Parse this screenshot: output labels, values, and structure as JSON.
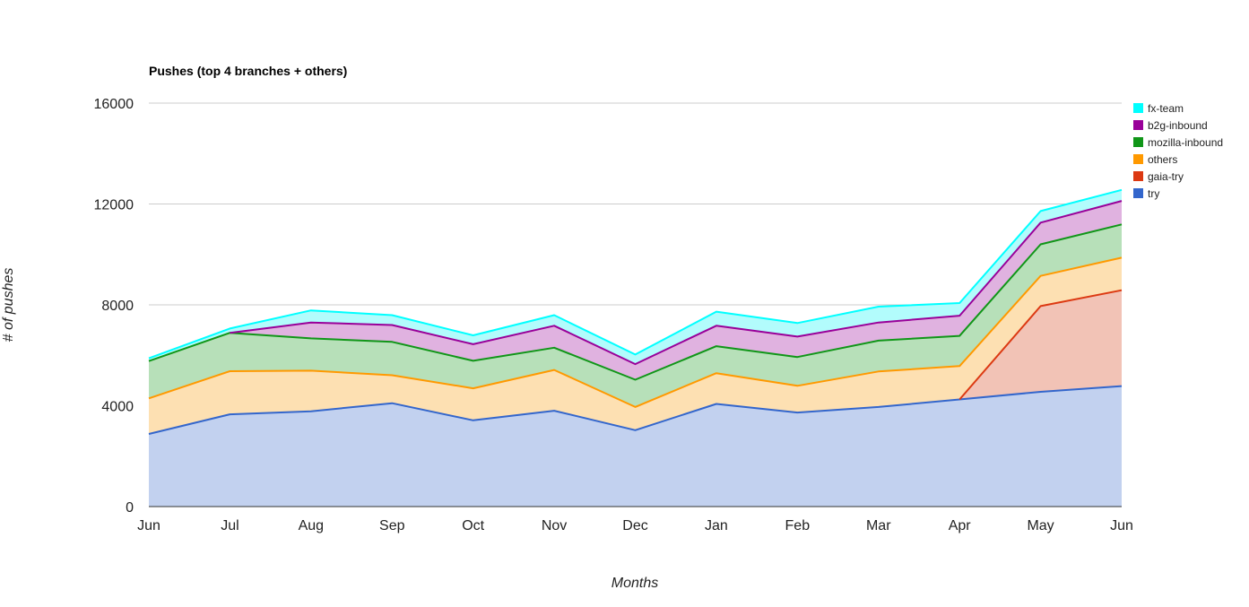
{
  "chart_data": {
    "type": "area",
    "stacked": true,
    "title": "Pushes (top 4 branches + others)",
    "xlabel": "Months",
    "ylabel": "# of pushes",
    "ylim": [
      0,
      16000
    ],
    "yticks": [
      "0",
      "4000",
      "8000",
      "12000",
      "16000"
    ],
    "y_tick_values": [
      0,
      4000,
      8000,
      12000,
      16000
    ],
    "categories": [
      "Jun",
      "Jul",
      "Aug",
      "Sep",
      "Oct",
      "Nov",
      "Dec",
      "Jan",
      "Feb",
      "Mar",
      "Apr",
      "May",
      "Jun"
    ],
    "legend_position": "right",
    "series": [
      {
        "name": "try",
        "color": "#3366cc",
        "fill": "#c2d1ef",
        "values": [
          2880,
          3660,
          3780,
          4100,
          3420,
          3800,
          3030,
          4070,
          3730,
          3950,
          4250,
          4550,
          4780
        ]
      },
      {
        "name": "gaia-try",
        "color": "#dc3912",
        "fill": "#f2c3b6",
        "values": [
          0,
          0,
          0,
          0,
          0,
          0,
          0,
          0,
          0,
          0,
          0,
          3400,
          3800
        ]
      },
      {
        "name": "others",
        "color": "#ff9900",
        "fill": "#fde0b2",
        "values": [
          1410,
          1710,
          1610,
          1110,
          1270,
          1620,
          920,
          1220,
          1060,
          1410,
          1320,
          1200,
          1290
        ]
      },
      {
        "name": "mozilla-inbound",
        "color": "#109618",
        "fill": "#b7e0b9",
        "values": [
          1480,
          1520,
          1280,
          1320,
          1090,
          880,
          1080,
          1070,
          1140,
          1220,
          1200,
          1250,
          1320
        ]
      },
      {
        "name": "b2g-inbound",
        "color": "#990099",
        "fill": "#e0b2e0",
        "values": [
          0,
          0,
          630,
          670,
          660,
          870,
          620,
          810,
          810,
          720,
          800,
          860,
          930
        ]
      },
      {
        "name": "fx-team",
        "color": "#00ffff",
        "fill": "#b2fcfc",
        "values": [
          110,
          170,
          480,
          390,
          350,
          420,
          380,
          560,
          540,
          630,
          500,
          460,
          440
        ]
      }
    ],
    "legend_order": [
      "fx-team",
      "b2g-inbound",
      "mozilla-inbound",
      "others",
      "gaia-try",
      "try"
    ]
  }
}
